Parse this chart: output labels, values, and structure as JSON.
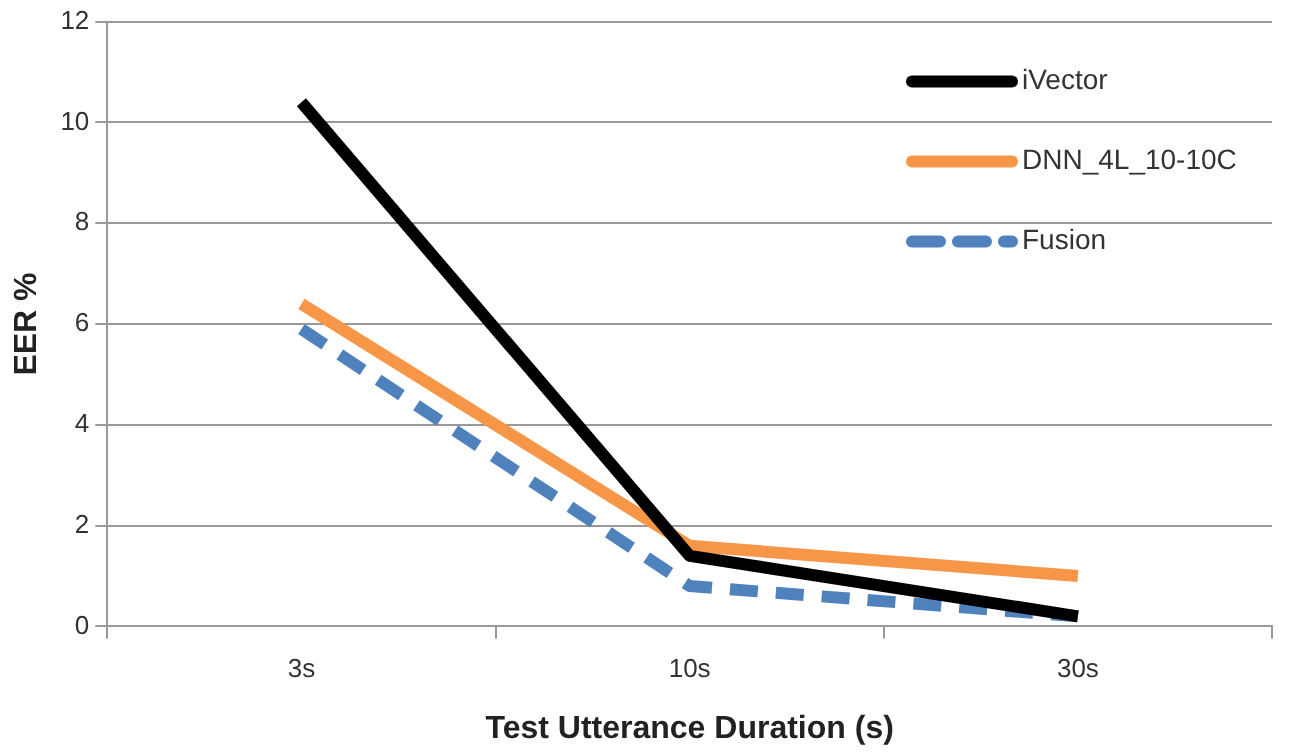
{
  "chart_data": {
    "type": "line",
    "xlabel": "Test Utterance Duration (s)",
    "ylabel": "EER %",
    "categories": [
      "3s",
      "10s",
      "30s"
    ],
    "series": [
      {
        "name": "iVector",
        "color": "#000000",
        "values": [
          10.4,
          1.4,
          0.2
        ],
        "line_style": "solid"
      },
      {
        "name": "DNN_4L_10-10C",
        "color": "#f79646",
        "values": [
          6.4,
          1.6,
          1.0
        ],
        "line_style": "solid"
      },
      {
        "name": "Fusion",
        "color": "#4f81bd",
        "values": [
          5.9,
          0.8,
          0.2
        ],
        "line_style": "dashed"
      }
    ],
    "ylim": [
      0,
      12
    ],
    "yticks": [
      0,
      2,
      4,
      6,
      8,
      10,
      12
    ],
    "grid": "y",
    "legend": "top right",
    "marker": "none"
  }
}
